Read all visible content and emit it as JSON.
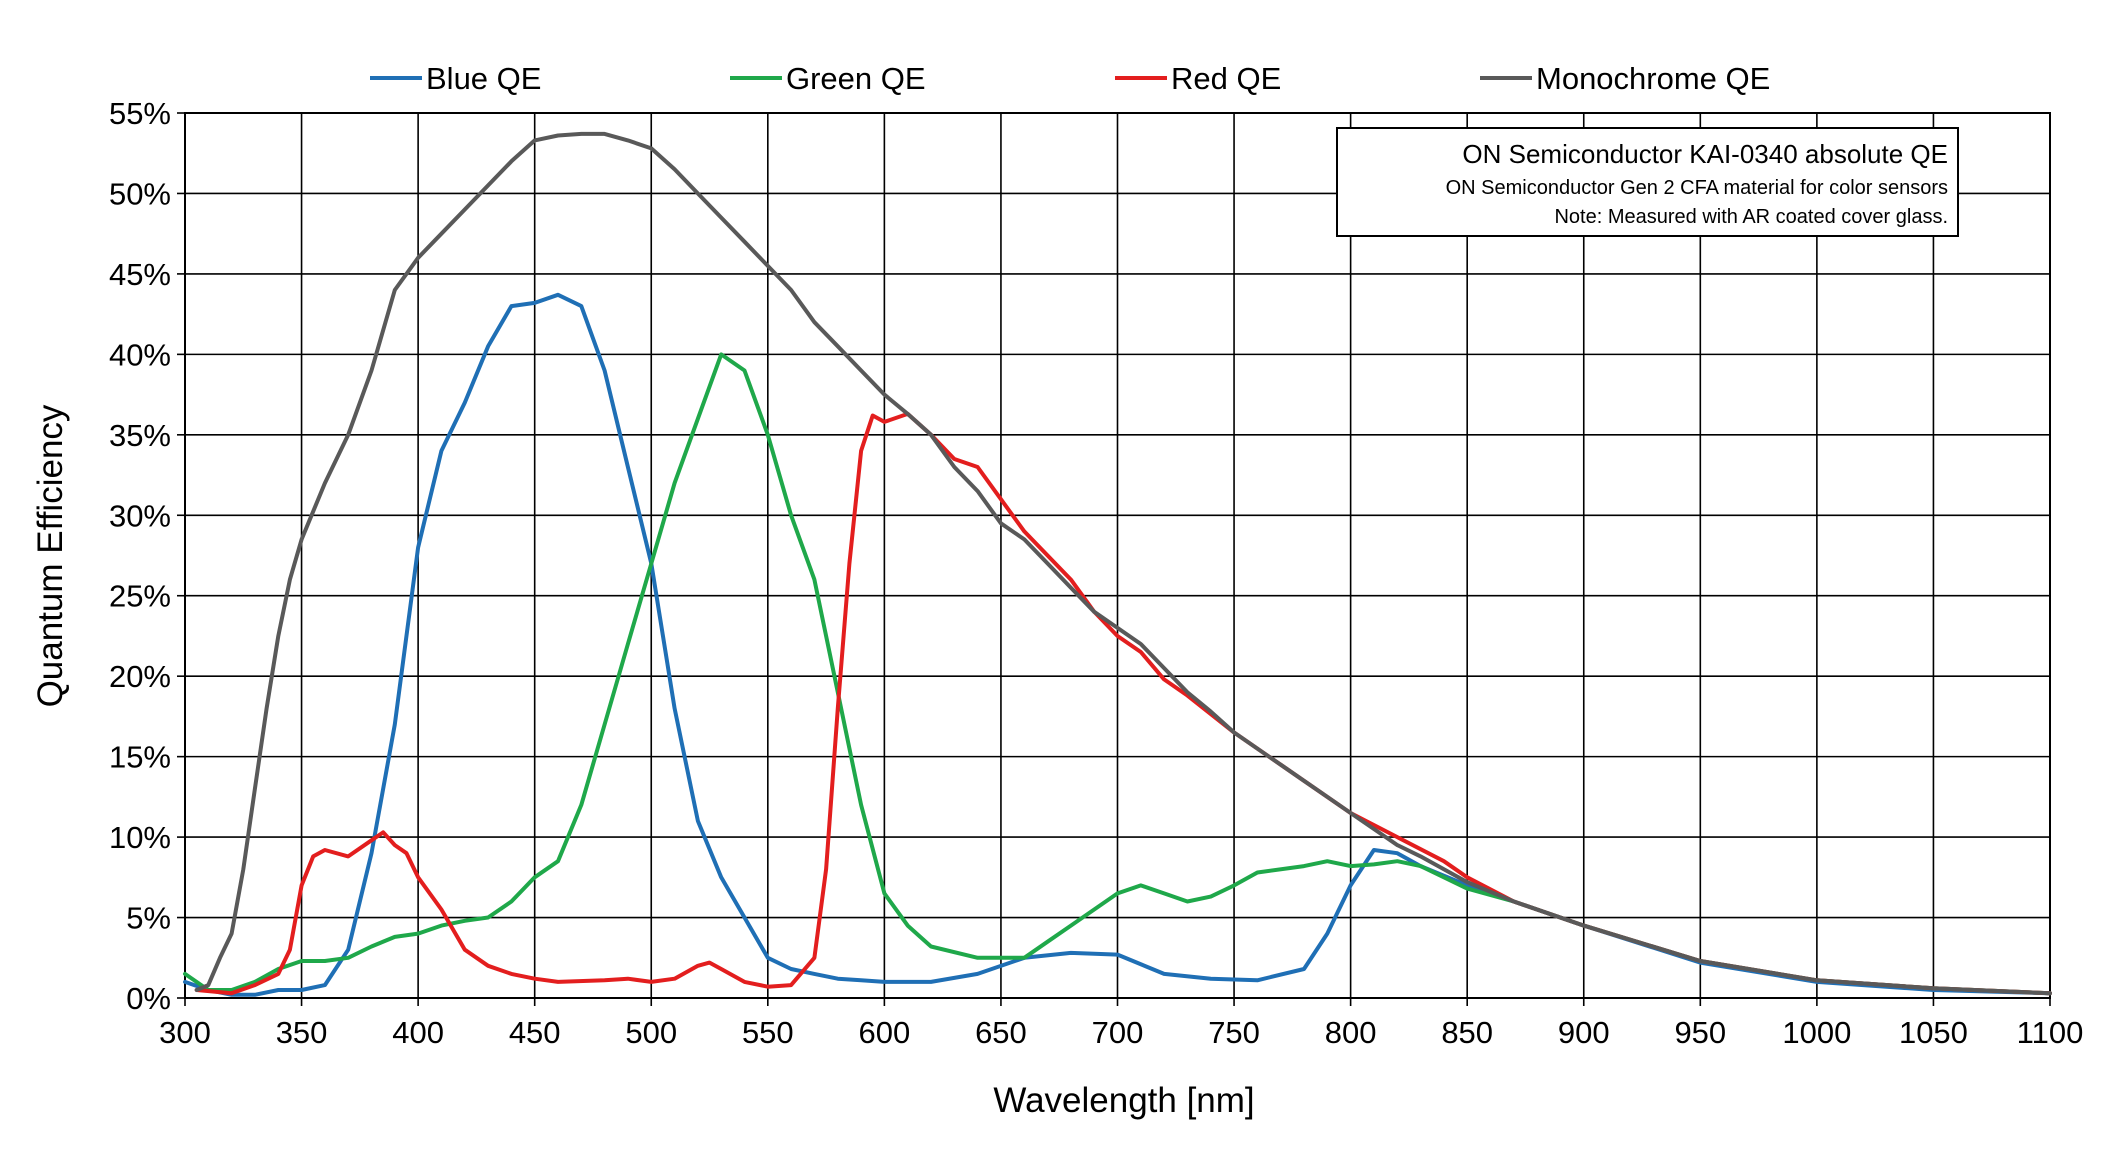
{
  "chart_data": {
    "type": "line",
    "title": "",
    "xlabel": "Wavelength [nm]",
    "ylabel": "Quantum Efficiency",
    "xlim": [
      300,
      1100
    ],
    "ylim": [
      0,
      55
    ],
    "grid": true,
    "legend_position": "top",
    "x_ticks": [
      "300",
      "350",
      "400",
      "450",
      "500",
      "550",
      "600",
      "650",
      "700",
      "750",
      "800",
      "850",
      "900",
      "950",
      "1000",
      "1050",
      "1100"
    ],
    "y_ticks": [
      "0%",
      "5%",
      "10%",
      "15%",
      "20%",
      "25%",
      "30%",
      "35%",
      "40%",
      "45%",
      "50%",
      "55%"
    ],
    "annotation": {
      "title": "ON Semiconductor KAI-0340 absolute QE",
      "line1": "ON Semiconductor Gen 2 CFA material for color sensors",
      "line2": "Note: Measured with AR coated cover glass.",
      "position": "top-right"
    },
    "series": [
      {
        "name": "Blue QE",
        "color": "#1f6fb5",
        "points": [
          [
            300,
            1
          ],
          [
            310,
            0.5
          ],
          [
            320,
            0.2
          ],
          [
            330,
            0.2
          ],
          [
            340,
            0.5
          ],
          [
            350,
            0.5
          ],
          [
            360,
            0.8
          ],
          [
            370,
            3
          ],
          [
            380,
            9
          ],
          [
            390,
            17
          ],
          [
            400,
            28
          ],
          [
            410,
            34
          ],
          [
            420,
            37
          ],
          [
            430,
            40.5
          ],
          [
            440,
            43
          ],
          [
            450,
            43.2
          ],
          [
            460,
            43.7
          ],
          [
            470,
            43
          ],
          [
            480,
            39
          ],
          [
            490,
            33
          ],
          [
            500,
            27
          ],
          [
            510,
            18
          ],
          [
            520,
            11
          ],
          [
            530,
            7.5
          ],
          [
            540,
            5
          ],
          [
            550,
            2.5
          ],
          [
            560,
            1.8
          ],
          [
            570,
            1.5
          ],
          [
            580,
            1.2
          ],
          [
            590,
            1.1
          ],
          [
            600,
            1
          ],
          [
            620,
            1
          ],
          [
            640,
            1.5
          ],
          [
            660,
            2.5
          ],
          [
            680,
            2.8
          ],
          [
            700,
            2.7
          ],
          [
            720,
            1.5
          ],
          [
            740,
            1.2
          ],
          [
            760,
            1.1
          ],
          [
            780,
            1.8
          ],
          [
            790,
            4
          ],
          [
            800,
            7
          ],
          [
            810,
            9.2
          ],
          [
            820,
            9
          ],
          [
            830,
            8.2
          ],
          [
            850,
            7
          ],
          [
            870,
            6
          ],
          [
            900,
            4.5
          ],
          [
            950,
            2.2
          ],
          [
            1000,
            1
          ],
          [
            1050,
            0.5
          ],
          [
            1100,
            0.3
          ]
        ]
      },
      {
        "name": "Green QE",
        "color": "#1fa84a",
        "points": [
          [
            300,
            1.5
          ],
          [
            310,
            0.5
          ],
          [
            320,
            0.5
          ],
          [
            330,
            1
          ],
          [
            340,
            1.8
          ],
          [
            350,
            2.3
          ],
          [
            360,
            2.3
          ],
          [
            370,
            2.5
          ],
          [
            380,
            3.2
          ],
          [
            390,
            3.8
          ],
          [
            400,
            4
          ],
          [
            410,
            4.5
          ],
          [
            420,
            4.8
          ],
          [
            430,
            5
          ],
          [
            440,
            6
          ],
          [
            450,
            7.5
          ],
          [
            460,
            8.5
          ],
          [
            470,
            12
          ],
          [
            480,
            17
          ],
          [
            490,
            22
          ],
          [
            500,
            27
          ],
          [
            510,
            32
          ],
          [
            520,
            36
          ],
          [
            530,
            40
          ],
          [
            540,
            39
          ],
          [
            550,
            35
          ],
          [
            560,
            30
          ],
          [
            570,
            26
          ],
          [
            580,
            19
          ],
          [
            590,
            12
          ],
          [
            600,
            6.5
          ],
          [
            610,
            4.5
          ],
          [
            620,
            3.2
          ],
          [
            640,
            2.5
          ],
          [
            660,
            2.5
          ],
          [
            670,
            3.5
          ],
          [
            680,
            4.5
          ],
          [
            690,
            5.5
          ],
          [
            700,
            6.5
          ],
          [
            710,
            7
          ],
          [
            720,
            6.5
          ],
          [
            730,
            6
          ],
          [
            740,
            6.3
          ],
          [
            750,
            7
          ],
          [
            760,
            7.8
          ],
          [
            780,
            8.2
          ],
          [
            790,
            8.5
          ],
          [
            800,
            8.2
          ],
          [
            810,
            8.3
          ],
          [
            820,
            8.5
          ],
          [
            830,
            8.2
          ],
          [
            840,
            7.5
          ],
          [
            850,
            6.8
          ],
          [
            870,
            6
          ],
          [
            900,
            4.5
          ],
          [
            950,
            2.3
          ],
          [
            1000,
            1.1
          ],
          [
            1050,
            0.6
          ],
          [
            1100,
            0.3
          ]
        ]
      },
      {
        "name": "Red QE",
        "color": "#e31e1e",
        "points": [
          [
            305,
            0.5
          ],
          [
            320,
            0.3
          ],
          [
            330,
            0.8
          ],
          [
            340,
            1.5
          ],
          [
            345,
            3
          ],
          [
            350,
            7
          ],
          [
            355,
            8.8
          ],
          [
            360,
            9.2
          ],
          [
            370,
            8.8
          ],
          [
            380,
            9.8
          ],
          [
            385,
            10.3
          ],
          [
            390,
            9.5
          ],
          [
            395,
            9
          ],
          [
            400,
            7.5
          ],
          [
            410,
            5.5
          ],
          [
            420,
            3
          ],
          [
            430,
            2
          ],
          [
            440,
            1.5
          ],
          [
            450,
            1.2
          ],
          [
            460,
            1
          ],
          [
            480,
            1.1
          ],
          [
            490,
            1.2
          ],
          [
            500,
            1
          ],
          [
            510,
            1.2
          ],
          [
            520,
            2
          ],
          [
            525,
            2.2
          ],
          [
            530,
            1.8
          ],
          [
            540,
            1
          ],
          [
            550,
            0.7
          ],
          [
            560,
            0.8
          ],
          [
            570,
            2.5
          ],
          [
            575,
            8
          ],
          [
            580,
            18
          ],
          [
            585,
            27
          ],
          [
            590,
            34
          ],
          [
            595,
            36.2
          ],
          [
            600,
            35.8
          ],
          [
            610,
            36.3
          ],
          [
            620,
            35
          ],
          [
            630,
            33.5
          ],
          [
            640,
            33
          ],
          [
            650,
            31
          ],
          [
            660,
            29
          ],
          [
            670,
            27.5
          ],
          [
            680,
            26
          ],
          [
            690,
            24
          ],
          [
            700,
            22.5
          ],
          [
            710,
            21.5
          ],
          [
            720,
            19.8
          ],
          [
            730,
            18.8
          ],
          [
            750,
            16.5
          ],
          [
            770,
            14.5
          ],
          [
            780,
            13.5
          ],
          [
            800,
            11.5
          ],
          [
            820,
            10
          ],
          [
            840,
            8.5
          ],
          [
            850,
            7.5
          ],
          [
            870,
            6
          ],
          [
            900,
            4.5
          ],
          [
            950,
            2.3
          ],
          [
            1000,
            1.1
          ],
          [
            1050,
            0.6
          ],
          [
            1100,
            0.3
          ]
        ]
      },
      {
        "name": "Monochrome QE",
        "color": "#595959",
        "points": [
          [
            305,
            0.5
          ],
          [
            310,
            0.8
          ],
          [
            315,
            2.5
          ],
          [
            320,
            4
          ],
          [
            325,
            8
          ],
          [
            330,
            13
          ],
          [
            335,
            18
          ],
          [
            340,
            22.5
          ],
          [
            345,
            26
          ],
          [
            350,
            28.5
          ],
          [
            360,
            32
          ],
          [
            370,
            35
          ],
          [
            380,
            39
          ],
          [
            390,
            44
          ],
          [
            400,
            46
          ],
          [
            410,
            47.5
          ],
          [
            420,
            49
          ],
          [
            430,
            50.5
          ],
          [
            440,
            52
          ],
          [
            450,
            53.3
          ],
          [
            460,
            53.6
          ],
          [
            470,
            53.7
          ],
          [
            480,
            53.7
          ],
          [
            490,
            53.3
          ],
          [
            500,
            52.8
          ],
          [
            510,
            51.5
          ],
          [
            520,
            50
          ],
          [
            530,
            48.5
          ],
          [
            540,
            47
          ],
          [
            550,
            45.5
          ],
          [
            560,
            44
          ],
          [
            570,
            42
          ],
          [
            580,
            40.5
          ],
          [
            590,
            39
          ],
          [
            600,
            37.5
          ],
          [
            610,
            36.3
          ],
          [
            620,
            35
          ],
          [
            630,
            33
          ],
          [
            640,
            31.5
          ],
          [
            650,
            29.5
          ],
          [
            660,
            28.5
          ],
          [
            670,
            27
          ],
          [
            680,
            25.5
          ],
          [
            690,
            24
          ],
          [
            700,
            23
          ],
          [
            710,
            22
          ],
          [
            720,
            20.5
          ],
          [
            730,
            19
          ],
          [
            740,
            17.8
          ],
          [
            750,
            16.5
          ],
          [
            760,
            15.5
          ],
          [
            770,
            14.5
          ],
          [
            780,
            13.5
          ],
          [
            790,
            12.5
          ],
          [
            800,
            11.5
          ],
          [
            810,
            10.5
          ],
          [
            820,
            9.5
          ],
          [
            830,
            8.8
          ],
          [
            840,
            8
          ],
          [
            850,
            7.2
          ],
          [
            870,
            6
          ],
          [
            900,
            4.5
          ],
          [
            950,
            2.3
          ],
          [
            1000,
            1.1
          ],
          [
            1050,
            0.6
          ],
          [
            1100,
            0.3
          ]
        ]
      }
    ]
  }
}
